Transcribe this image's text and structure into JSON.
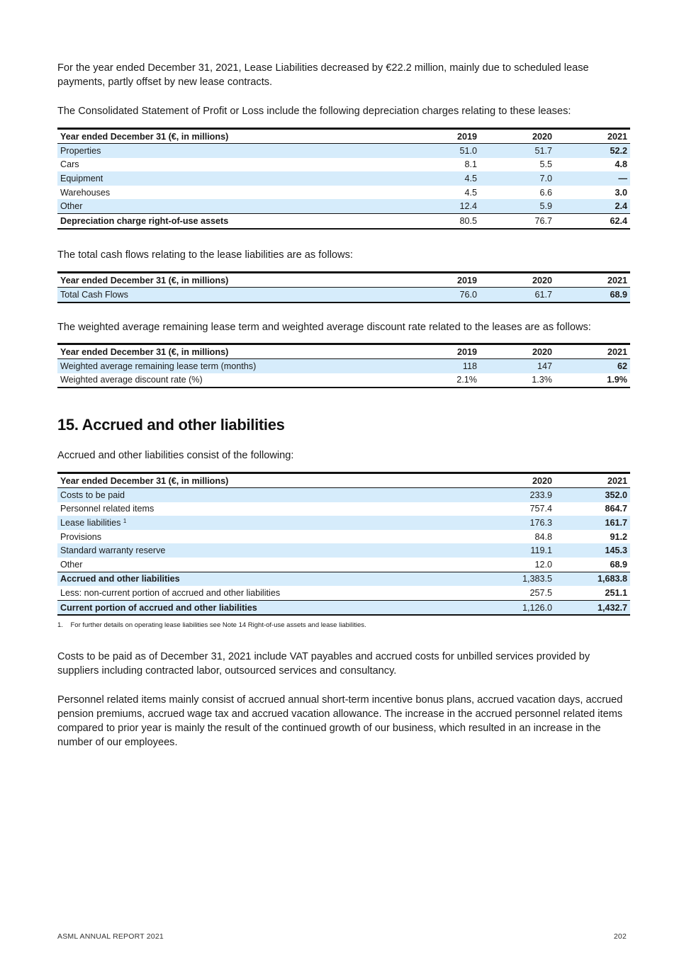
{
  "intro_paragraph": "For the year ended December 31, 2021, Lease Liabilities decreased by €22.2 million, mainly due to scheduled lease payments, partly offset by new lease contracts.",
  "depreciation_intro": "The Consolidated Statement of Profit or Loss include the following depreciation charges relating to these leases:",
  "table_depreciation": {
    "header": [
      "Year ended December 31 (€, in millions)",
      "2019",
      "2020",
      "2021"
    ],
    "rows": [
      [
        "Properties",
        "51.0",
        "51.7",
        "52.2"
      ],
      [
        "Cars",
        "8.1",
        "5.5",
        "4.8"
      ],
      [
        "Equipment",
        "4.5",
        "7.0",
        "—"
      ],
      [
        "Warehouses",
        "4.5",
        "6.6",
        "3.0"
      ],
      [
        "Other",
        "12.4",
        "5.9",
        "2.4"
      ],
      [
        "Depreciation charge right-of-use assets",
        "80.5",
        "76.7",
        "62.4"
      ]
    ]
  },
  "cashflow_intro": "The total cash flows relating to the lease liabilities are as follows:",
  "table_cashflows": {
    "header": [
      "Year ended December 31 (€, in millions)",
      "2019",
      "2020",
      "2021"
    ],
    "rows": [
      [
        "Total Cash Flows",
        "76.0",
        "61.7",
        "68.9"
      ]
    ]
  },
  "weighted_intro": "The weighted average remaining lease term and weighted average discount rate related to the leases are as follows:",
  "table_weighted": {
    "header": [
      "Year ended December 31 (€, in millions)",
      "2019",
      "2020",
      "2021"
    ],
    "rows": [
      [
        "Weighted average remaining lease term (months)",
        "118",
        "147",
        "62"
      ],
      [
        "Weighted average discount rate (%)",
        "2.1%",
        "1.3%",
        "1.9%"
      ]
    ]
  },
  "section_heading": "15. Accrued and other liabilities",
  "accrued_intro": "Accrued and other liabilities consist of the following:",
  "table_accrued": {
    "header": [
      "Year ended December 31 (€, in millions)",
      "2020",
      "2021"
    ],
    "rows": [
      [
        "Costs to be paid",
        "233.9",
        "352.0"
      ],
      [
        "Personnel related items",
        "757.4",
        "864.7"
      ],
      [
        "Lease liabilities",
        "176.3",
        "161.7"
      ],
      [
        "Provisions",
        "84.8",
        "91.2"
      ],
      [
        "Standard warranty reserve",
        "119.1",
        "145.3"
      ],
      [
        "Other",
        "12.0",
        "68.9"
      ],
      [
        "Accrued and other liabilities",
        "1,383.5",
        "1,683.8"
      ],
      [
        "Less: non-current portion of accrued and other liabilities",
        "257.5",
        "251.1"
      ],
      [
        "Current portion of accrued and other liabilities",
        "1,126.0",
        "1,432.7"
      ]
    ],
    "lease_footnote_marker": "1"
  },
  "footnote": "1.    For further details on operating lease liabilities see Note 14 Right-of-use assets and lease liabilities.",
  "costs_paragraph": "Costs to be paid as of December 31, 2021 include VAT payables and accrued costs for unbilled services provided by suppliers including contracted labor, outsourced services and consultancy.",
  "personnel_paragraph": "Personnel related items mainly consist of accrued annual short-term incentive bonus plans, accrued vacation days, accrued pension premiums, accrued wage tax and accrued vacation allowance. The increase in the accrued personnel related items compared to prior year is mainly the result of the continued growth of our business, which resulted in an increase in the number of our employees.",
  "footer": {
    "left": "ASML ANNUAL REPORT 2021",
    "page_number": "202"
  },
  "colors": {
    "row_shade": "#d6ecfb",
    "rule": "#111111"
  }
}
